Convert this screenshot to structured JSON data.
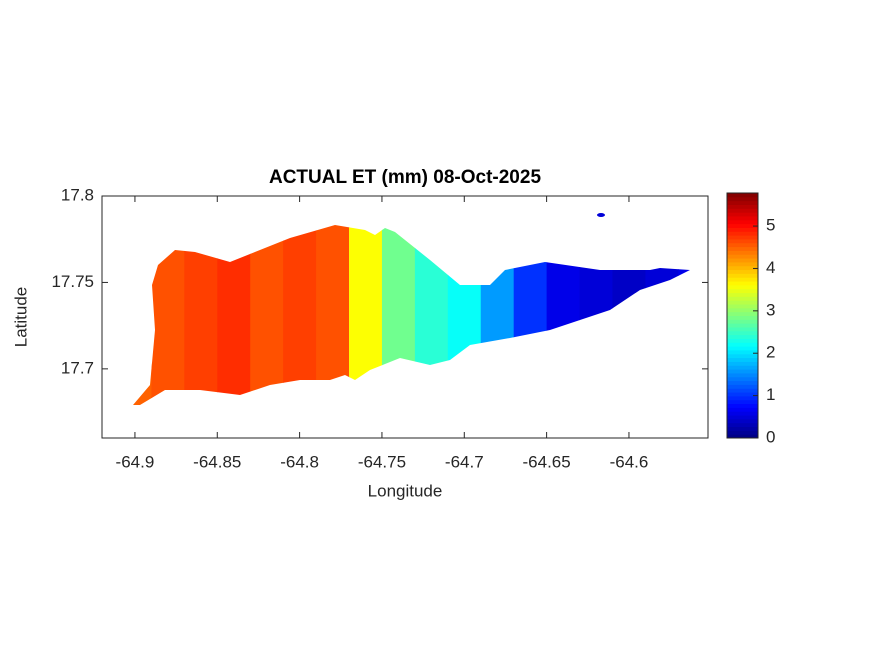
{
  "chart_data": {
    "type": "map",
    "title": "ACTUAL ET (mm) 08-Oct-2025",
    "xlabel": "Longitude",
    "ylabel": "Latitude",
    "xlim": [
      -64.92,
      -64.552
    ],
    "ylim": [
      17.66,
      17.8
    ],
    "xticks": [
      -64.9,
      -64.85,
      -64.8,
      -64.75,
      -64.7,
      -64.65,
      -64.6
    ],
    "yticks": [
      17.7,
      17.75,
      17.8
    ],
    "x": [
      -64.9,
      -64.88,
      -64.86,
      -64.84,
      -64.82,
      -64.8,
      -64.78,
      -64.76,
      -64.74,
      -64.72,
      -64.7,
      -64.68,
      -64.66,
      -64.64,
      -64.62,
      -64.6,
      -64.58,
      -64.56
    ],
    "values": [
      4.5,
      4.6,
      4.7,
      4.8,
      4.6,
      4.7,
      4.6,
      3.6,
      2.8,
      2.4,
      2.2,
      1.6,
      1.0,
      0.6,
      0.5,
      0.4,
      0.5,
      0.6
    ],
    "colormap": "jet",
    "clim": [
      0,
      5.78
    ],
    "cticks": [
      0,
      1,
      2,
      3,
      4,
      5
    ]
  }
}
